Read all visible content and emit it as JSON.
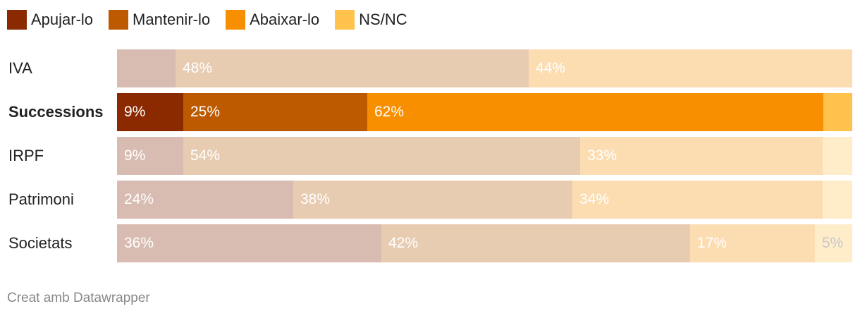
{
  "colors": {
    "apujar": "#8b2a00",
    "mantenir": "#bd5a00",
    "abaixar": "#f88f00",
    "nsnc": "#ffc34d"
  },
  "chart_data": {
    "type": "bar",
    "orientation": "horizontal",
    "stacked": true,
    "normalized": true,
    "legend_position": "top-left",
    "highlighted_category": "Successions",
    "series": [
      {
        "name": "Apujar-lo",
        "values": [
          8,
          9,
          9,
          24,
          36
        ]
      },
      {
        "name": "Mantenir-lo",
        "values": [
          48,
          25,
          54,
          38,
          42
        ]
      },
      {
        "name": "Abaixar-lo",
        "values": [
          44,
          62,
          33,
          34,
          17
        ]
      },
      {
        "name": "NS/NC",
        "values": [
          0,
          4,
          4,
          4,
          5
        ]
      }
    ],
    "categories": [
      "IVA",
      "Successions",
      "IRPF",
      "Patrimoni",
      "Societats"
    ],
    "data_labels": [
      [
        "",
        "48%",
        "44%",
        ""
      ],
      [
        "9%",
        "25%",
        "62%",
        ""
      ],
      [
        "9%",
        "54%",
        "33%",
        ""
      ],
      [
        "24%",
        "38%",
        "34%",
        ""
      ],
      [
        "36%",
        "42%",
        "17%",
        "5%"
      ]
    ]
  },
  "footer": "Creat amb Datawrapper"
}
